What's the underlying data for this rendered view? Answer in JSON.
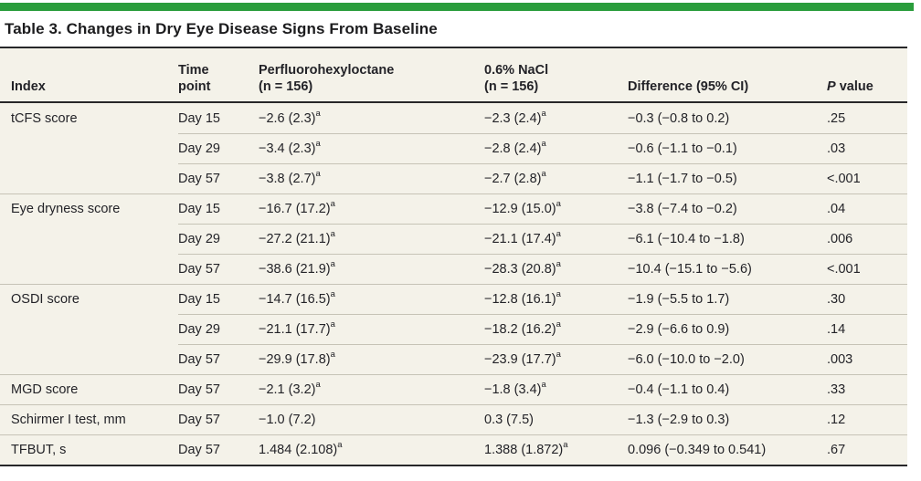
{
  "title": "Table 3. Changes in Dry Eye Disease Signs From Baseline",
  "colors": {
    "accent_green": "#2a9d3c",
    "table_background": "#f4f2e9",
    "rule_dark": "#272729",
    "rule_light": "#c6c3b6",
    "text": "#232328"
  },
  "header": {
    "index": "Index",
    "time_line1": "Time",
    "time_line2": "point",
    "pfho_line1": "Perfluorohexyloctane",
    "pfho_line2": "(n = 156)",
    "nacl_line1": "0.6% NaCl",
    "nacl_line2": "(n = 156)",
    "difference": "Difference (95% CI)",
    "p_italic": "P",
    "p_rest": " value"
  },
  "rows": [
    {
      "index": "tCFS score",
      "time": "Day 15",
      "pfho": "−2.6 (2.3)",
      "pfho_sup": "a",
      "nacl": "−2.3 (2.4)",
      "nacl_sup": "a",
      "diff": "−0.3 (−0.8 to 0.2)",
      "p": ".25"
    },
    {
      "index": "",
      "time": "Day 29",
      "pfho": "−3.4 (2.3)",
      "pfho_sup": "a",
      "nacl": "−2.8 (2.4)",
      "nacl_sup": "a",
      "diff": "−0.6 (−1.1 to −0.1)",
      "p": ".03"
    },
    {
      "index": "",
      "time": "Day 57",
      "pfho": "−3.8 (2.7)",
      "pfho_sup": "a",
      "nacl": "−2.7 (2.8)",
      "nacl_sup": "a",
      "diff": "−1.1 (−1.7 to −0.5)",
      "p": "<.001"
    },
    {
      "index": "Eye dryness score",
      "time": "Day 15",
      "pfho": "−16.7 (17.2)",
      "pfho_sup": "a",
      "nacl": "−12.9 (15.0)",
      "nacl_sup": "a",
      "diff": "−3.8 (−7.4 to −0.2)",
      "p": ".04"
    },
    {
      "index": "",
      "time": "Day 29",
      "pfho": "−27.2 (21.1)",
      "pfho_sup": "a",
      "nacl": "−21.1 (17.4)",
      "nacl_sup": "a",
      "diff": "−6.1 (−10.4 to −1.8)",
      "p": ".006"
    },
    {
      "index": "",
      "time": "Day 57",
      "pfho": "−38.6 (21.9)",
      "pfho_sup": "a",
      "nacl": "−28.3 (20.8)",
      "nacl_sup": "a",
      "diff": "−10.4 (−15.1 to −5.6)",
      "p": "<.001"
    },
    {
      "index": "OSDI score",
      "time": "Day 15",
      "pfho": "−14.7 (16.5)",
      "pfho_sup": "a",
      "nacl": "−12.8 (16.1)",
      "nacl_sup": "a",
      "diff": "−1.9 (−5.5 to 1.7)",
      "p": ".30"
    },
    {
      "index": "",
      "time": "Day 29",
      "pfho": "−21.1 (17.7)",
      "pfho_sup": "a",
      "nacl": "−18.2 (16.2)",
      "nacl_sup": "a",
      "diff": "−2.9 (−6.6 to 0.9)",
      "p": ".14"
    },
    {
      "index": "",
      "time": "Day 57",
      "pfho": "−29.9 (17.8)",
      "pfho_sup": "a",
      "nacl": "−23.9 (17.7)",
      "nacl_sup": "a",
      "diff": "−6.0 (−10.0 to −2.0)",
      "p": ".003"
    },
    {
      "index": "MGD score",
      "time": "Day 57",
      "pfho": "−2.1 (3.2)",
      "pfho_sup": "a",
      "nacl": "−1.8 (3.4)",
      "nacl_sup": "a",
      "diff": "−0.4 (−1.1 to 0.4)",
      "p": ".33"
    },
    {
      "index": "Schirmer I test, mm",
      "time": "Day 57",
      "pfho": "−1.0 (7.2)",
      "pfho_sup": "",
      "nacl": "0.3 (7.5)",
      "nacl_sup": "",
      "diff": "−1.3 (−2.9 to 0.3)",
      "p": ".12"
    },
    {
      "index": "TFBUT, s",
      "time": "Day 57",
      "pfho": "1.484 (2.108)",
      "pfho_sup": "a",
      "nacl": "1.388 (1.872)",
      "nacl_sup": "a",
      "diff": "0.096 (−0.349 to 0.541)",
      "p": ".67"
    }
  ]
}
